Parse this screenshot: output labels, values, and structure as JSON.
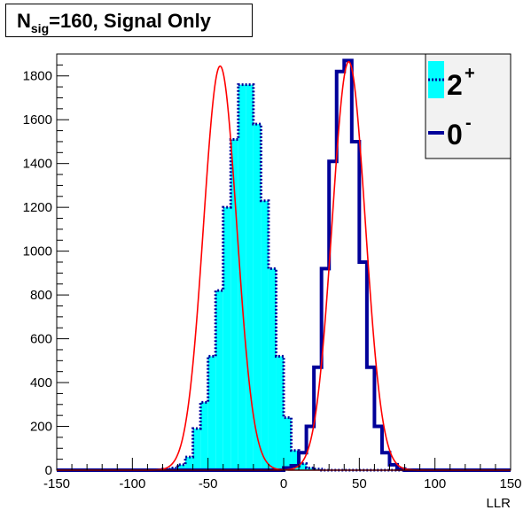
{
  "title": {
    "prefix": "N",
    "subscript": "sig",
    "suffix": "=160, Signal Only"
  },
  "chart_data": {
    "type": "histogram",
    "xlabel": "LLR",
    "ylabel": "",
    "xlim": [
      -150,
      150
    ],
    "ylim": [
      0,
      1900
    ],
    "x_ticks": [
      -150,
      -100,
      -50,
      0,
      50,
      100,
      150
    ],
    "y_ticks": [
      0,
      200,
      400,
      600,
      800,
      1000,
      1200,
      1400,
      1600,
      1800
    ],
    "bin_width": 5,
    "legend_position": "top-right",
    "series": [
      {
        "name": "2",
        "name_sup": "+",
        "style": "filled histogram, dotted outline",
        "fill_color": "#00ffff",
        "line_color": "#000099",
        "bin_edges_start": -95,
        "values": [
          0,
          0,
          0,
          5,
          10,
          25,
          60,
          190,
          310,
          520,
          820,
          1200,
          1510,
          1760,
          1760,
          1580,
          1230,
          920,
          520,
          240,
          90,
          30,
          10,
          5,
          0
        ]
      },
      {
        "name": "0",
        "name_sup": "-",
        "style": "solid histogram outline",
        "line_color": "#000099",
        "bin_edges_start": 0,
        "values": [
          10,
          20,
          80,
          200,
          470,
          920,
          1410,
          1820,
          1870,
          1500,
          950,
          470,
          200,
          80,
          25,
          5,
          0
        ]
      }
    ],
    "fits": [
      {
        "series": "2",
        "type": "gaussian",
        "mean": -42,
        "sigma": 11.0,
        "amplitude": 1845,
        "color": "#ff0000"
      },
      {
        "series": "0",
        "type": "gaussian",
        "mean": 43,
        "sigma": 11.0,
        "amplitude": 1865,
        "color": "#ff0000"
      }
    ]
  }
}
